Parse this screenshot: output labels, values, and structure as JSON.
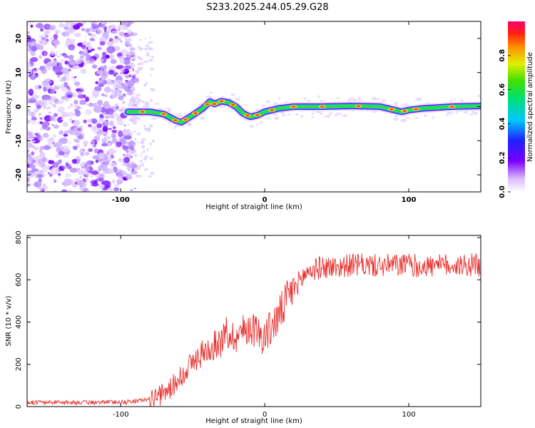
{
  "title": "S233.2025.244.05.29.G28",
  "colors": {
    "snr_line": "#e8312f",
    "spectrogram_track": [
      "#7a00ff",
      "#00c0ff",
      "#30e030",
      "#ffe000",
      "#ff4000"
    ]
  },
  "chart_data": [
    {
      "type": "heatmap",
      "name": "spectrogram",
      "xlabel": "Height of straight line (km)",
      "ylabel": "Frequency (Hz)",
      "xlim": [
        -165,
        150
      ],
      "ylim": [
        -25,
        25
      ],
      "xticks": [
        -100,
        0,
        100
      ],
      "yticks": [
        -20,
        -10,
        0,
        10,
        20
      ],
      "ridge": {
        "x": [
          -95,
          -80,
          -70,
          -62,
          -58,
          -50,
          -43,
          -38,
          -35,
          -30,
          -25,
          -20,
          -15,
          -10,
          -5,
          0,
          10,
          20,
          40,
          60,
          80,
          90,
          95,
          100,
          110,
          130,
          150
        ],
        "y": [
          -1.5,
          -1.5,
          -2.2,
          -4.0,
          -4.6,
          -2.5,
          -0.5,
          1.5,
          0.8,
          1.6,
          1.2,
          0.0,
          -2.0,
          -3.0,
          -2.5,
          -1.5,
          -0.5,
          0.0,
          0.0,
          0.2,
          0.0,
          -1.0,
          -1.5,
          -1.0,
          -0.5,
          0.0,
          0.2
        ]
      },
      "noise_region_x": [
        -165,
        -92
      ],
      "colorbar": {
        "label": "Normalized spectral amplitude",
        "range": [
          0,
          1
        ],
        "ticks": [
          "0.0",
          "0.2",
          "0.4",
          "0.6",
          "0.8"
        ]
      }
    },
    {
      "type": "line",
      "name": "snr",
      "xlabel": "Height of straight line (km)",
      "ylabel": "SNR (10 * v/v)",
      "xlim": [
        -165,
        150
      ],
      "ylim": [
        0,
        810
      ],
      "xticks": [
        -100,
        0,
        100
      ],
      "yticks": [
        0,
        200,
        400,
        600,
        800
      ],
      "series": [
        {
          "name": "SNR",
          "x": [
            -165,
            -140,
            -120,
            -100,
            -90,
            -80,
            -75,
            -70,
            -65,
            -60,
            -55,
            -50,
            -45,
            -40,
            -35,
            -30,
            -25,
            -20,
            -15,
            -10,
            -5,
            0,
            5,
            10,
            15,
            20,
            25,
            30,
            40,
            50,
            60,
            70,
            80,
            90,
            100,
            110,
            120,
            130,
            140,
            150
          ],
          "y": [
            20,
            20,
            20,
            22,
            25,
            35,
            45,
            60,
            90,
            130,
            175,
            210,
            240,
            270,
            290,
            320,
            340,
            330,
            360,
            380,
            350,
            330,
            380,
            430,
            500,
            560,
            600,
            640,
            660,
            660,
            670,
            670,
            665,
            670,
            670,
            665,
            665,
            670,
            670,
            670
          ]
        }
      ]
    }
  ]
}
